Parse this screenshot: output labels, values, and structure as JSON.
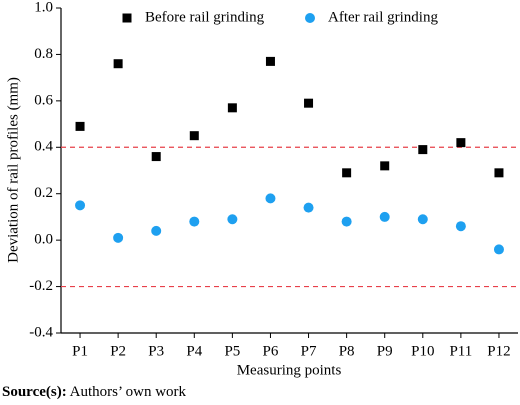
{
  "chart_data": {
    "type": "scatter",
    "ylabel": "Deviation of rail profiles (mm)",
    "xlabel": "Measuring points",
    "categories": [
      "P1",
      "P2",
      "P3",
      "P4",
      "P5",
      "P6",
      "P7",
      "P8",
      "P9",
      "P10",
      "P11",
      "P12"
    ],
    "series": [
      {
        "name": "Before rail grinding",
        "color": "#000000",
        "marker": "square",
        "values": [
          0.49,
          0.76,
          0.36,
          0.45,
          0.57,
          0.77,
          0.59,
          0.29,
          0.32,
          0.39,
          0.42,
          0.29
        ]
      },
      {
        "name": "After rail grinding",
        "color": "#1ea0f0",
        "marker": "circle",
        "values": [
          0.15,
          0.01,
          0.04,
          0.08,
          0.09,
          0.18,
          0.14,
          0.08,
          0.1,
          0.09,
          0.06,
          -0.04
        ]
      }
    ],
    "ylim": [
      -0.4,
      1
    ],
    "yticks": [
      -0.4,
      -0.2,
      {
        "value": 0,
        "label": "0.0"
      },
      0.2,
      0.4,
      0.6,
      0.8,
      {
        "value": 1,
        "label": "1.0"
      }
    ],
    "ref_lines": [
      {
        "value": 0.4,
        "color": "#e8404a"
      },
      {
        "value": -0.2,
        "color": "#e8404a"
      }
    ],
    "source_label": "Source(s):",
    "source_text": "Authors’ own work"
  }
}
